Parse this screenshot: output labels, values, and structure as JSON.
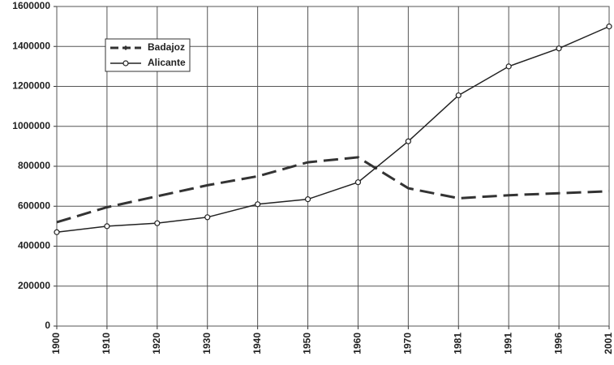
{
  "chart_data": {
    "type": "line",
    "categories": [
      "1900",
      "1910",
      "1920",
      "1930",
      "1940",
      "1950",
      "1960",
      "1970",
      "1981",
      "1991",
      "1996",
      "2001"
    ],
    "series": [
      {
        "name": "Badajoz",
        "color": "#333333",
        "dash": "dashed",
        "marker": "diamond",
        "values": [
          520000,
          595000,
          650000,
          705000,
          750000,
          820000,
          845000,
          690000,
          640000,
          655000,
          665000,
          675000
        ]
      },
      {
        "name": "Alicante",
        "color": "#222222",
        "dash": "solid",
        "marker": "circle",
        "values": [
          470000,
          500000,
          515000,
          545000,
          610000,
          635000,
          720000,
          925000,
          1155000,
          1300000,
          1390000,
          1500000
        ]
      }
    ],
    "ylim": [
      0,
      1600000
    ],
    "yticks": [
      0,
      200000,
      400000,
      600000,
      800000,
      1000000,
      1200000,
      1400000,
      1600000
    ],
    "grid": true,
    "legend": "upper left"
  }
}
